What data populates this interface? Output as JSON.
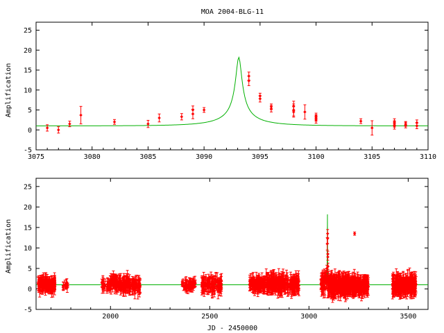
{
  "colors": {
    "data": "#ff0000",
    "model": "#00b000",
    "axis": "#000000",
    "background": "#ffffff"
  },
  "chart_data": [
    {
      "type": "scatter",
      "title": "MOA 2004-BLG-11",
      "xlabel": "",
      "ylabel": "Amplification",
      "xlim": [
        3075,
        3110
      ],
      "ylim": [
        -5,
        27
      ],
      "xticks": [
        3075,
        3080,
        3085,
        3090,
        3095,
        3100,
        3105,
        3110
      ],
      "yticks": [
        -5,
        0,
        5,
        10,
        15,
        20,
        25
      ],
      "grid": false,
      "model": {
        "name": "",
        "t0": 3093.1,
        "u0": 0.055,
        "tE": 5.0,
        "baseline": 1.0
      },
      "series": [
        {
          "name": "",
          "points": [
            {
              "x": 3076.0,
              "y": 0.5,
              "err": 0.8
            },
            {
              "x": 3077.0,
              "y": 0.0,
              "err": 0.8
            },
            {
              "x": 3078.0,
              "y": 1.5,
              "err": 0.7
            },
            {
              "x": 3079.0,
              "y": 3.7,
              "err": 2.2
            },
            {
              "x": 3082.0,
              "y": 2.0,
              "err": 0.6
            },
            {
              "x": 3085.0,
              "y": 1.5,
              "err": 0.9
            },
            {
              "x": 3086.0,
              "y": 3.0,
              "err": 1.0
            },
            {
              "x": 3088.0,
              "y": 3.3,
              "err": 0.8
            },
            {
              "x": 3089.0,
              "y": 4.0,
              "err": 1.2
            },
            {
              "x": 3089.0,
              "y": 5.0,
              "err": 1.0
            },
            {
              "x": 3090.0,
              "y": 5.0,
              "err": 0.6
            },
            {
              "x": 3094.0,
              "y": 13.5,
              "err": 1.0
            },
            {
              "x": 3094.0,
              "y": 12.3,
              "err": 1.2
            },
            {
              "x": 3095.0,
              "y": 8.5,
              "err": 0.7
            },
            {
              "x": 3095.0,
              "y": 7.8,
              "err": 0.8
            },
            {
              "x": 3096.0,
              "y": 5.3,
              "err": 0.8
            },
            {
              "x": 3096.0,
              "y": 5.8,
              "err": 0.7
            },
            {
              "x": 3098.0,
              "y": 5.0,
              "err": 1.5
            },
            {
              "x": 3098.0,
              "y": 6.0,
              "err": 1.2
            },
            {
              "x": 3098.0,
              "y": 4.5,
              "err": 1.3
            },
            {
              "x": 3099.0,
              "y": 4.5,
              "err": 1.8
            },
            {
              "x": 3100.0,
              "y": 3.0,
              "err": 0.8
            },
            {
              "x": 3100.0,
              "y": 3.5,
              "err": 0.7
            },
            {
              "x": 3100.0,
              "y": 2.5,
              "err": 0.8
            },
            {
              "x": 3104.0,
              "y": 2.2,
              "err": 0.6
            },
            {
              "x": 3105.0,
              "y": 0.5,
              "err": 1.8
            },
            {
              "x": 3107.0,
              "y": 1.5,
              "err": 0.8
            },
            {
              "x": 3107.0,
              "y": 1.0,
              "err": 0.8
            },
            {
              "x": 3107.0,
              "y": 2.0,
              "err": 0.8
            },
            {
              "x": 3108.0,
              "y": 1.5,
              "err": 0.6
            },
            {
              "x": 3108.0,
              "y": 1.2,
              "err": 0.7
            },
            {
              "x": 3109.0,
              "y": 1.8,
              "err": 0.7
            },
            {
              "x": 3109.0,
              "y": 1.0,
              "err": 0.7
            }
          ]
        }
      ]
    },
    {
      "type": "scatter",
      "title": "",
      "xlabel": "JD - 2450000",
      "ylabel": "Amplification",
      "xlim": [
        1625,
        3600
      ],
      "ylim": [
        -5,
        27
      ],
      "xticks": [
        2000,
        2500,
        3000,
        3500
      ],
      "yticks": [
        -5,
        0,
        5,
        10,
        15,
        20,
        25
      ],
      "grid": false,
      "model": {
        "name": "",
        "t0": 3093.1,
        "u0": 0.055,
        "tE": 5.0,
        "baseline": 1.0
      },
      "series": [
        {
          "name": "",
          "clusters": [
            {
              "start": 1635,
              "end": 1720,
              "center": 1.0,
              "spread": 1.2,
              "err": 1.5,
              "count": 120
            },
            {
              "start": 1705,
              "end": 1720,
              "center": 1.2,
              "spread": 1.0,
              "err": 1.3,
              "count": 30
            },
            {
              "start": 1760,
              "end": 1790,
              "center": 1.0,
              "spread": 0.8,
              "err": 1.0,
              "count": 10
            },
            {
              "start": 1955,
              "end": 2000,
              "center": 1.0,
              "spread": 1.0,
              "err": 1.2,
              "count": 25
            },
            {
              "start": 2000,
              "end": 2050,
              "center": 1.5,
              "spread": 1.3,
              "err": 1.5,
              "count": 60
            },
            {
              "start": 2050,
              "end": 2150,
              "center": 1.0,
              "spread": 1.4,
              "err": 1.6,
              "count": 90
            },
            {
              "start": 2360,
              "end": 2430,
              "center": 1.0,
              "spread": 1.0,
              "err": 1.2,
              "count": 50
            },
            {
              "start": 2460,
              "end": 2560,
              "center": 1.0,
              "spread": 1.3,
              "err": 1.7,
              "count": 90
            },
            {
              "start": 2700,
              "end": 2780,
              "center": 1.0,
              "spread": 1.2,
              "err": 1.5,
              "count": 100
            },
            {
              "start": 2780,
              "end": 2950,
              "center": 1.3,
              "spread": 1.4,
              "err": 1.8,
              "count": 200
            },
            {
              "start": 3060,
              "end": 3090,
              "center": 1.5,
              "spread": 1.5,
              "err": 1.8,
              "count": 40
            },
            {
              "start": 3095,
              "end": 3200,
              "center": 1.0,
              "spread": 1.6,
              "err": 2.0,
              "count": 220
            },
            {
              "start": 3200,
              "end": 3300,
              "center": 0.8,
              "spread": 1.4,
              "err": 1.8,
              "count": 160
            },
            {
              "start": 3420,
              "end": 3540,
              "center": 1.0,
              "spread": 1.4,
              "err": 2.0,
              "count": 200
            }
          ],
          "points": [
            {
              "x": 3094,
              "y": 13.5,
              "err": 1.0
            },
            {
              "x": 3094,
              "y": 12.3,
              "err": 1.2
            },
            {
              "x": 3095,
              "y": 8.5,
              "err": 0.7
            },
            {
              "x": 3095,
              "y": 7.8,
              "err": 0.8
            },
            {
              "x": 3096,
              "y": 5.5,
              "err": 0.8
            },
            {
              "x": 3092,
              "y": 11.0,
              "err": 1.5
            },
            {
              "x": 3090,
              "y": 5.0,
              "err": 0.8
            },
            {
              "x": 3230,
              "y": 13.5,
              "err": 0.4
            }
          ]
        }
      ]
    }
  ]
}
